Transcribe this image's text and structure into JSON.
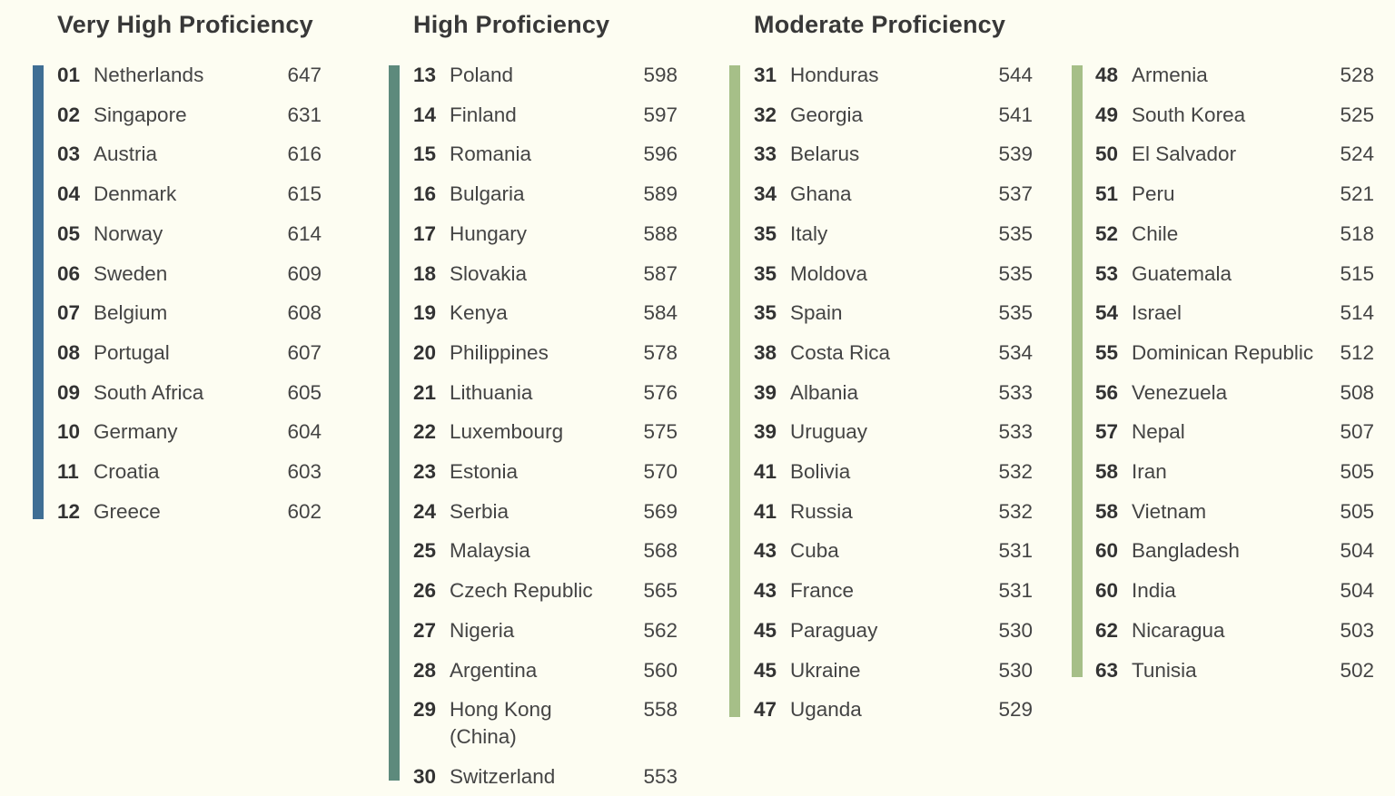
{
  "colors": {
    "very_high": "#3f6e94",
    "high": "#5d8a7c",
    "moderate": "#a6bf88",
    "background": "#fdfdf2"
  },
  "columns": [
    {
      "heading": "Very High Proficiency",
      "color_key": "very_high",
      "rows": [
        {
          "rank": "01",
          "name": "Netherlands",
          "score": "647"
        },
        {
          "rank": "02",
          "name": "Singapore",
          "score": "631"
        },
        {
          "rank": "03",
          "name": "Austria",
          "score": "616"
        },
        {
          "rank": "04",
          "name": "Denmark",
          "score": "615"
        },
        {
          "rank": "05",
          "name": "Norway",
          "score": "614"
        },
        {
          "rank": "06",
          "name": "Sweden",
          "score": "609"
        },
        {
          "rank": "07",
          "name": "Belgium",
          "score": "608"
        },
        {
          "rank": "08",
          "name": "Portugal",
          "score": "607"
        },
        {
          "rank": "09",
          "name": "South Africa",
          "score": "605"
        },
        {
          "rank": "10",
          "name": "Germany",
          "score": "604"
        },
        {
          "rank": "11",
          "name": "Croatia",
          "score": "603"
        },
        {
          "rank": "12",
          "name": "Greece",
          "score": "602"
        }
      ]
    },
    {
      "heading": "High Proficiency",
      "color_key": "high",
      "rows": [
        {
          "rank": "13",
          "name": "Poland",
          "score": "598"
        },
        {
          "rank": "14",
          "name": "Finland",
          "score": "597"
        },
        {
          "rank": "15",
          "name": "Romania",
          "score": "596"
        },
        {
          "rank": "16",
          "name": "Bulgaria",
          "score": "589"
        },
        {
          "rank": "17",
          "name": "Hungary",
          "score": "588"
        },
        {
          "rank": "18",
          "name": "Slovakia",
          "score": "587"
        },
        {
          "rank": "19",
          "name": "Kenya",
          "score": "584"
        },
        {
          "rank": "20",
          "name": "Philippines",
          "score": "578"
        },
        {
          "rank": "21",
          "name": "Lithuania",
          "score": "576"
        },
        {
          "rank": "22",
          "name": "Luxembourg",
          "score": "575"
        },
        {
          "rank": "23",
          "name": "Estonia",
          "score": "570"
        },
        {
          "rank": "24",
          "name": "Serbia",
          "score": "569"
        },
        {
          "rank": "25",
          "name": "Malaysia",
          "score": "568"
        },
        {
          "rank": "26",
          "name": "Czech Republic",
          "score": "565"
        },
        {
          "rank": "27",
          "name": "Nigeria",
          "score": "562"
        },
        {
          "rank": "28",
          "name": "Argentina",
          "score": "560"
        },
        {
          "rank": "29",
          "name": "Hong Kong (China)",
          "score": "558"
        },
        {
          "rank": "30",
          "name": "Switzerland",
          "score": "553"
        }
      ]
    },
    {
      "heading": "Moderate Proficiency",
      "color_key": "moderate",
      "rows": [
        {
          "rank": "31",
          "name": "Honduras",
          "score": "544"
        },
        {
          "rank": "32",
          "name": "Georgia",
          "score": "541"
        },
        {
          "rank": "33",
          "name": "Belarus",
          "score": "539"
        },
        {
          "rank": "34",
          "name": "Ghana",
          "score": "537"
        },
        {
          "rank": "35",
          "name": "Italy",
          "score": "535"
        },
        {
          "rank": "35",
          "name": "Moldova",
          "score": "535"
        },
        {
          "rank": "35",
          "name": "Spain",
          "score": "535"
        },
        {
          "rank": "38",
          "name": "Costa Rica",
          "score": "534"
        },
        {
          "rank": "39",
          "name": "Albania",
          "score": "533"
        },
        {
          "rank": "39",
          "name": "Uruguay",
          "score": "533"
        },
        {
          "rank": "41",
          "name": "Bolivia",
          "score": "532"
        },
        {
          "rank": "41",
          "name": "Russia",
          "score": "532"
        },
        {
          "rank": "43",
          "name": "Cuba",
          "score": "531"
        },
        {
          "rank": "43",
          "name": "France",
          "score": "531"
        },
        {
          "rank": "45",
          "name": "Paraguay",
          "score": "530"
        },
        {
          "rank": "45",
          "name": "Ukraine",
          "score": "530"
        },
        {
          "rank": "47",
          "name": "Uganda",
          "score": "529"
        }
      ]
    },
    {
      "heading": "",
      "color_key": "moderate",
      "rows": [
        {
          "rank": "48",
          "name": "Armenia",
          "score": "528"
        },
        {
          "rank": "49",
          "name": "South Korea",
          "score": "525"
        },
        {
          "rank": "50",
          "name": "El Salvador",
          "score": "524"
        },
        {
          "rank": "51",
          "name": "Peru",
          "score": "521"
        },
        {
          "rank": "52",
          "name": "Chile",
          "score": "518"
        },
        {
          "rank": "53",
          "name": "Guatemala",
          "score": "515"
        },
        {
          "rank": "54",
          "name": "Israel",
          "score": "514"
        },
        {
          "rank": "55",
          "name": "Dominican Republic",
          "score": "512"
        },
        {
          "rank": "56",
          "name": "Venezuela",
          "score": "508"
        },
        {
          "rank": "57",
          "name": "Nepal",
          "score": "507"
        },
        {
          "rank": "58",
          "name": "Iran",
          "score": "505"
        },
        {
          "rank": "58",
          "name": "Vietnam",
          "score": "505"
        },
        {
          "rank": "60",
          "name": "Bangladesh",
          "score": "504"
        },
        {
          "rank": "60",
          "name": "India",
          "score": "504"
        },
        {
          "rank": "62",
          "name": "Nicaragua",
          "score": "503"
        },
        {
          "rank": "63",
          "name": "Tunisia",
          "score": "502"
        }
      ]
    }
  ]
}
